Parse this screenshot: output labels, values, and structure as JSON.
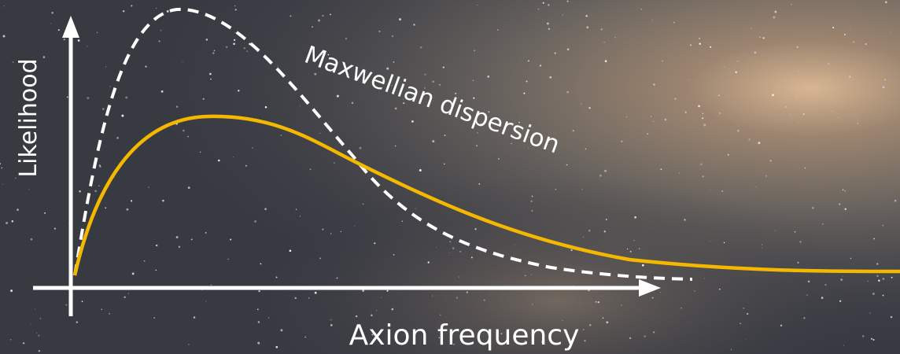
{
  "axes": {
    "y_label": "Likelihood",
    "x_label": "Axion frequency"
  },
  "annotations": [
    {
      "text": "Maxwellian dispersion"
    }
  ]
}
